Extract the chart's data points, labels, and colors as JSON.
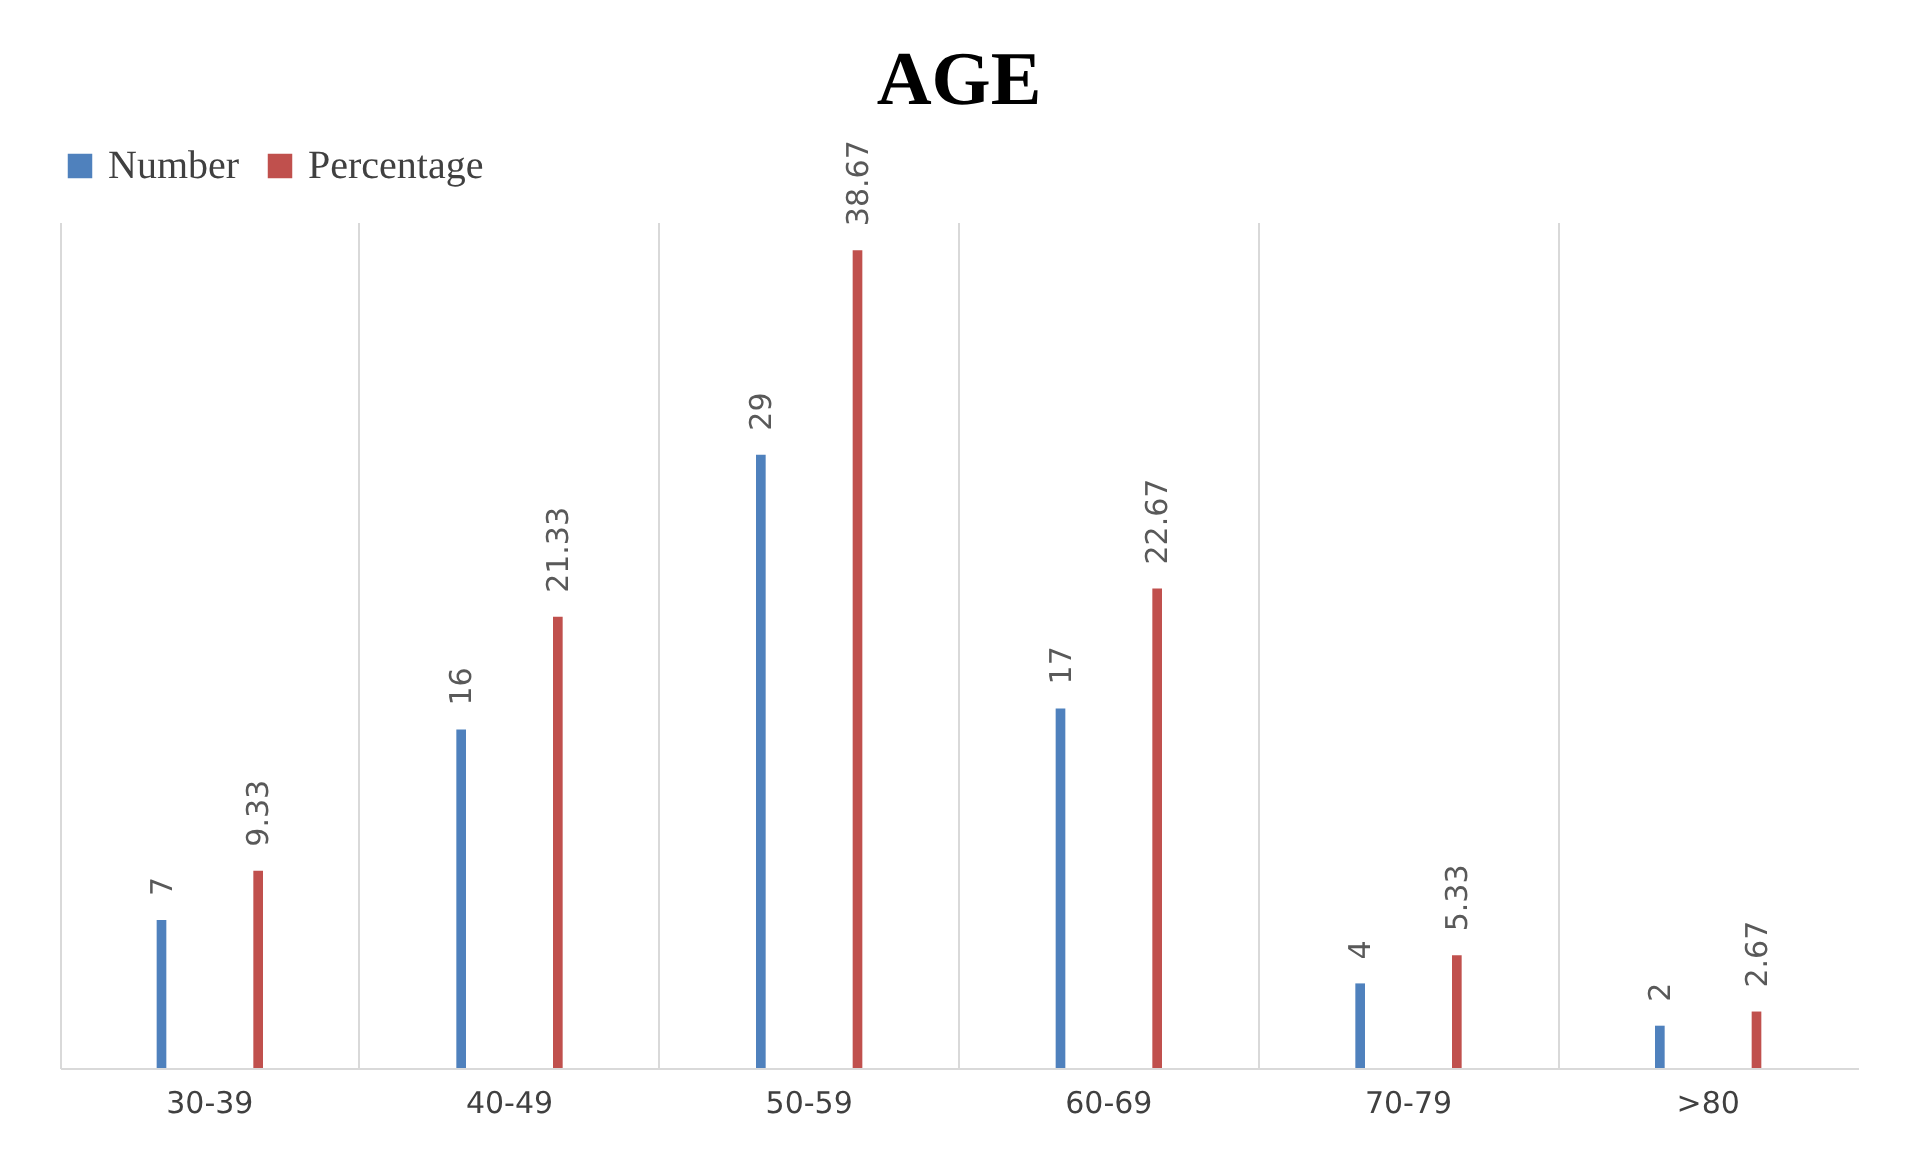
{
  "chart_data": {
    "type": "bar",
    "title": "AGE",
    "categories": [
      "30-39",
      "40-49",
      "50-59",
      "60-69",
      "70-79",
      ">80"
    ],
    "series": [
      {
        "name": "Number",
        "color": "#4f81bd",
        "values": [
          7,
          16,
          29,
          17,
          4,
          2
        ]
      },
      {
        "name": "Percentage",
        "color": "#c0504d",
        "values": [
          9.33,
          21.33,
          38.67,
          22.67,
          5.33,
          2.67
        ]
      }
    ],
    "data_labels": true,
    "grid": "x",
    "legend": "top"
  }
}
